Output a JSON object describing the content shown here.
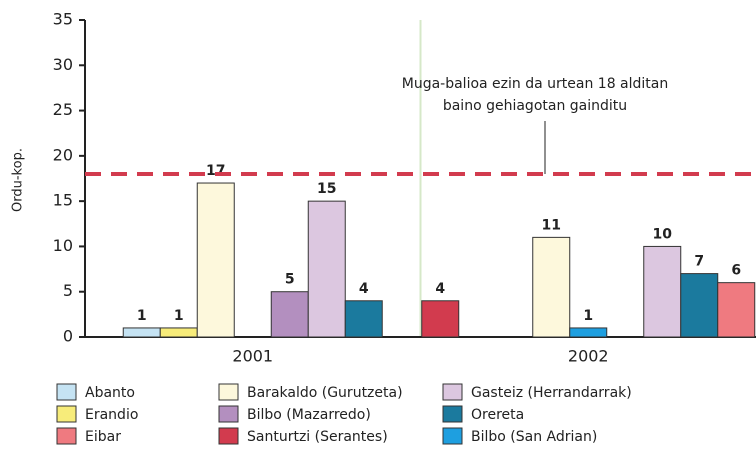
{
  "chart_data": {
    "type": "bar",
    "y_label": "Ordu-kop.",
    "categories": [
      "2001",
      "2002"
    ],
    "series": [
      {
        "name": "Santurtzi (Serantes)",
        "color": "#d23b4e",
        "values": [
          null,
          4
        ]
      },
      {
        "name": "Abanto",
        "color": "#c5e3f3",
        "values": [
          1,
          null
        ]
      },
      {
        "name": "Erandio",
        "color": "#f7ec7a",
        "values": [
          1,
          null
        ]
      },
      {
        "name": "Barakaldo (Gurutzeta)",
        "color": "#fdf8dc",
        "values": [
          17,
          11
        ]
      },
      {
        "name": "Bilbo (San Adrian)",
        "color": "#1e9fe0",
        "values": [
          null,
          1
        ]
      },
      {
        "name": "Bilbo (Mazarredo)",
        "color": "#b38fbf",
        "values": [
          5,
          null
        ]
      },
      {
        "name": "Gasteiz (Herrandarrak)",
        "color": "#dcc7e0",
        "values": [
          15,
          10
        ]
      },
      {
        "name": "Orereta",
        "color": "#1b7a9e",
        "values": [
          4,
          7
        ]
      },
      {
        "name": "Eibar",
        "color": "#ef7a80",
        "values": [
          null,
          6
        ]
      }
    ],
    "ylim": [
      0,
      35
    ],
    "yticks": [
      0,
      5,
      10,
      15,
      20,
      25,
      30,
      35
    ],
    "reference_line": {
      "value": 18,
      "color": "#d23b4e"
    },
    "annotation": [
      "Muga-balioa ezin da urtean 18 alditan",
      "baino gehiagotan gainditu"
    ]
  }
}
